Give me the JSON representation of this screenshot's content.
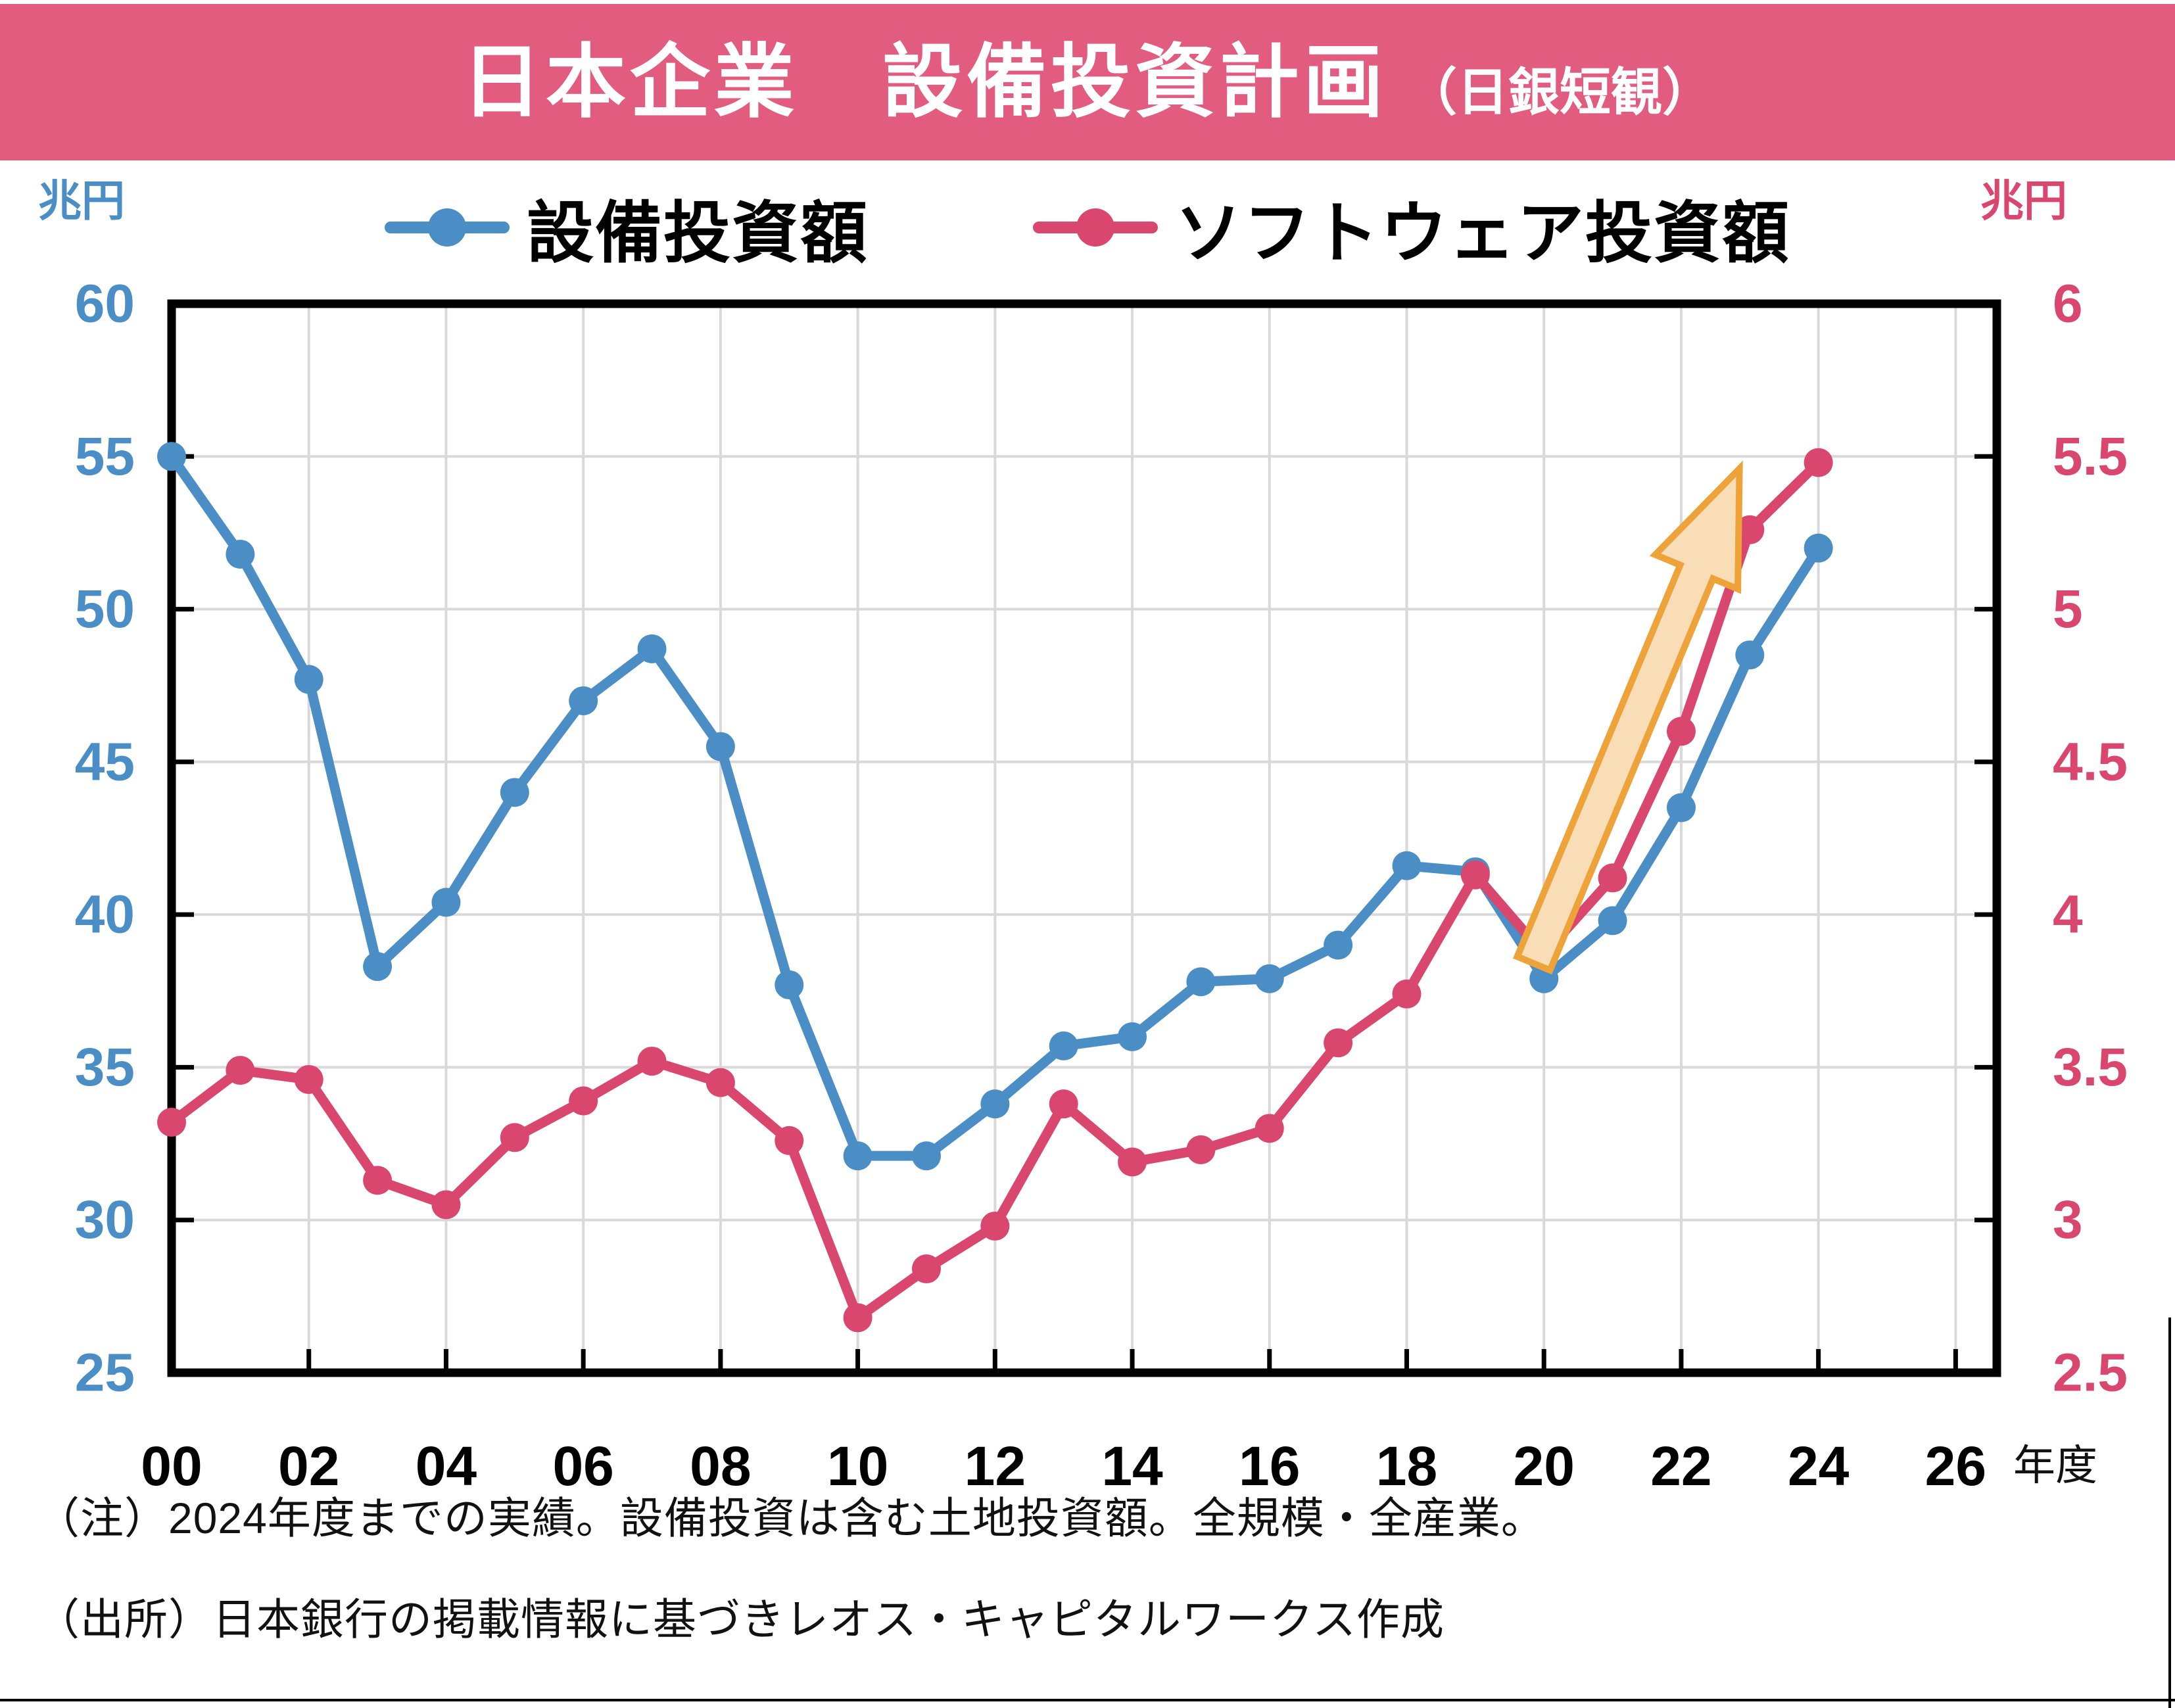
{
  "header": {
    "title": "日本企業　設備投資計画",
    "subtitle": "（日銀短観）"
  },
  "legend": [
    {
      "label": "設備投資額",
      "color": "#4a8ec5"
    },
    {
      "label": "ソフトウェア投資額",
      "color": "#d9476f"
    }
  ],
  "axes": {
    "left_unit": "兆円",
    "right_unit": "兆円",
    "x_unit": "年度",
    "left_ticks": [
      "60",
      "55",
      "50",
      "45",
      "40",
      "35",
      "30",
      "25"
    ],
    "right_ticks": [
      "6",
      "5.5",
      "5",
      "4.5",
      "4",
      "3.5",
      "3",
      "2.5"
    ],
    "x_ticks": [
      "00",
      "02",
      "04",
      "06",
      "08",
      "10",
      "12",
      "14",
      "16",
      "18",
      "20",
      "22",
      "24",
      "26"
    ]
  },
  "notes": [
    "（注）2024年度までの実績。設備投資は含む土地投資額。全規模・全産業。",
    "（出所）日本銀行の掲載情報に基づきレオス・キャピタルワークス作成"
  ],
  "colors": {
    "header_bg": "#e25c7f",
    "blue": "#4a8ec5",
    "pink": "#d9476f",
    "grid": "#d9d9d9",
    "axis": "#000000",
    "tick_label_x": "#000000",
    "arrow_fill": "#f8ddb6",
    "arrow_stroke": "#eda23a"
  },
  "chart_data": {
    "type": "line",
    "title": "日本企業　設備投資計画（日銀短観）",
    "xlabel": "年度",
    "ylabel_left": "兆円",
    "ylabel_right": "兆円",
    "grid": true,
    "legend_position": "top",
    "x": [
      2000,
      2001,
      2002,
      2003,
      2004,
      2005,
      2006,
      2007,
      2008,
      2009,
      2010,
      2011,
      2012,
      2013,
      2014,
      2015,
      2016,
      2017,
      2018,
      2019,
      2020,
      2021,
      2022,
      2023,
      2024
    ],
    "series": [
      {
        "name": "設備投資額",
        "axis": "left",
        "color": "#4a8ec5",
        "values": [
          55.0,
          51.8,
          47.7,
          38.3,
          40.4,
          44.0,
          47.0,
          48.7,
          45.5,
          37.7,
          32.1,
          32.1,
          33.8,
          35.7,
          36.0,
          37.8,
          37.9,
          39.0,
          41.6,
          41.4,
          37.9,
          39.8,
          43.5,
          48.5,
          52.0
        ]
      },
      {
        "name": "ソフトウェア投資額",
        "axis": "right",
        "color": "#d9476f",
        "values": [
          3.32,
          3.49,
          3.46,
          3.13,
          3.05,
          3.27,
          3.39,
          3.52,
          3.45,
          3.26,
          2.68,
          2.84,
          2.98,
          3.38,
          3.19,
          3.23,
          3.3,
          3.58,
          3.74,
          4.13,
          3.87,
          4.12,
          4.6,
          5.26,
          5.48
        ]
      }
    ],
    "xlim": [
      2000,
      2026.6
    ],
    "x_gridline_step_years": 2,
    "left_ylim": [
      25,
      60
    ],
    "left_tick_step": 5,
    "right_ylim": [
      2.5,
      6.0
    ],
    "right_tick_step": 0.5,
    "annotation_arrow": {
      "x1": 2019.85,
      "y1_left": 38.4,
      "x2": 2022.85,
      "y2_left": 54.6
    }
  }
}
